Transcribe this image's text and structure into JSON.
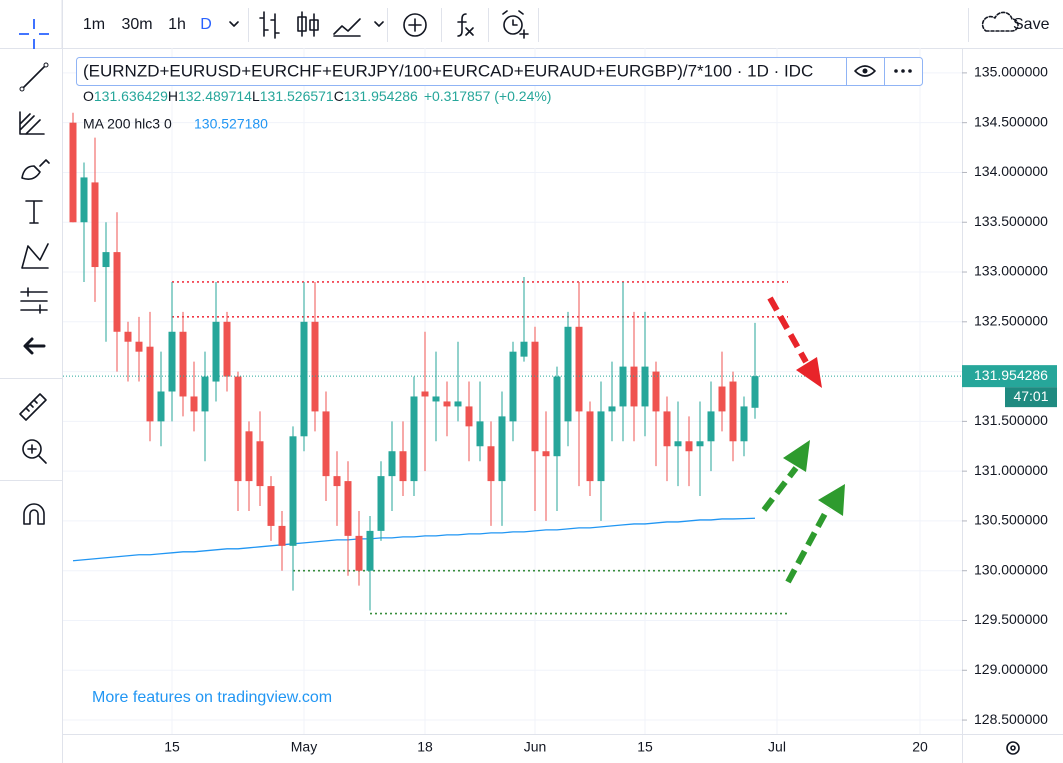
{
  "toolbar": {
    "intervals": [
      "1m",
      "30m",
      "1h",
      "D"
    ],
    "save": "Save"
  },
  "legend": {
    "title": "(EURNZD+EURUSD+EURCHF+EURJPY/100+EURCAD+EURAUD+EURGBP)/7*100 · 1D · IDC",
    "ohlc": [
      [
        "O",
        "131.636429"
      ],
      [
        "H",
        "132.489714"
      ],
      [
        "L",
        "131.526571"
      ],
      [
        "C",
        "131.954286"
      ]
    ],
    "change": "+0.317857 (+0.24%)",
    "ma_name": "MA 200 hlc3 0",
    "ma_value": "130.527180"
  },
  "watermark": "More features on tradingview.com",
  "chart_data": {
    "type": "candlestick",
    "categories": [
      null,
      null,
      null,
      null,
      null,
      null,
      null,
      null,
      null,
      "15",
      null,
      null,
      null,
      null,
      null,
      null,
      null,
      null,
      null,
      null,
      null,
      "May",
      null,
      null,
      null,
      null,
      null,
      null,
      null,
      null,
      null,
      null,
      "18",
      null,
      null,
      null,
      null,
      null,
      null,
      null,
      null,
      null,
      "Jun",
      null,
      null,
      null,
      null,
      null,
      null,
      null,
      null,
      null,
      "15",
      null,
      null,
      null,
      null,
      null,
      null,
      null,
      null,
      null,
      null,
      null,
      "Jul",
      null,
      null,
      null,
      null,
      null,
      null,
      null,
      null,
      null,
      null,
      null,
      null,
      "20",
      null,
      null,
      null
    ],
    "open": [
      134.5,
      133.5,
      133.9,
      133.05,
      133.2,
      132.4,
      132.3,
      132.25,
      131.5,
      131.8,
      132.4,
      131.75,
      131.6,
      131.9,
      132.5,
      131.95,
      131.4,
      131.3,
      130.85,
      130.45,
      130.25,
      131.35,
      132.5,
      131.6,
      130.95,
      130.9,
      130.35,
      130.0,
      130.4,
      130.95,
      131.2,
      130.9,
      131.8,
      131.7,
      131.7,
      131.65,
      131.65,
      131.25,
      131.25,
      130.9,
      131.5,
      132.15,
      132.3,
      131.2,
      131.15,
      131.5,
      132.45,
      131.6,
      130.9,
      131.6,
      131.65,
      132.05,
      131.65,
      132.0,
      131.6,
      131.25,
      131.3,
      131.25,
      131.3,
      131.85,
      131.9,
      131.3,
      131.636429,
      null,
      null,
      null,
      null,
      null,
      null,
      null,
      null,
      null,
      null,
      null,
      null,
      null,
      null,
      null,
      null,
      null,
      null
    ],
    "high": [
      134.6,
      134.1,
      134.35,
      133.5,
      133.6,
      132.5,
      132.55,
      132.6,
      132.2,
      132.9,
      132.6,
      132.1,
      132.2,
      132.9,
      132.6,
      132.0,
      131.5,
      131.6,
      130.95,
      130.6,
      131.45,
      132.9,
      132.9,
      131.8,
      131.2,
      131.1,
      130.6,
      130.55,
      131.1,
      131.5,
      131.5,
      131.95,
      132.4,
      132.2,
      131.9,
      132.3,
      131.9,
      131.9,
      131.5,
      131.8,
      132.3,
      132.95,
      132.45,
      131.6,
      132.05,
      132.6,
      132.9,
      131.7,
      131.9,
      132.1,
      132.9,
      132.6,
      132.6,
      132.1,
      131.75,
      131.7,
      131.55,
      131.7,
      131.9,
      132.2,
      132.0,
      131.75,
      132.489714,
      null,
      null,
      null,
      null,
      null,
      null,
      null,
      null,
      null,
      null,
      null,
      null,
      null,
      null,
      null,
      null,
      null,
      null
    ],
    "low": [
      133.5,
      132.9,
      132.7,
      132.3,
      132.0,
      131.9,
      131.9,
      131.3,
      131.25,
      131.5,
      131.55,
      131.4,
      131.1,
      131.7,
      131.8,
      130.6,
      130.6,
      130.65,
      130.3,
      130.0,
      129.8,
      131.2,
      131.4,
      130.7,
      130.45,
      129.95,
      129.85,
      129.6,
      130.3,
      130.6,
      130.75,
      130.75,
      131.0,
      131.3,
      131.35,
      131.5,
      131.1,
      131.1,
      130.45,
      130.45,
      131.3,
      132.1,
      130.6,
      130.5,
      130.6,
      131.25,
      130.85,
      130.75,
      130.5,
      131.3,
      131.3,
      131.3,
      131.35,
      131.05,
      130.9,
      130.85,
      130.85,
      130.75,
      131.0,
      131.4,
      131.1,
      131.15,
      131.526571,
      null,
      null,
      null,
      null,
      null,
      null,
      null,
      null,
      null,
      null,
      null,
      null,
      null,
      null,
      null,
      null,
      null,
      null
    ],
    "close": [
      133.5,
      133.95,
      133.05,
      133.2,
      132.4,
      132.3,
      132.2,
      131.5,
      131.8,
      132.4,
      131.75,
      131.6,
      131.95,
      132.5,
      131.95,
      130.9,
      130.9,
      130.85,
      130.45,
      130.25,
      131.35,
      132.5,
      131.6,
      130.95,
      130.85,
      130.35,
      130.0,
      130.4,
      130.95,
      131.2,
      130.9,
      131.75,
      131.75,
      131.75,
      131.65,
      131.7,
      131.45,
      131.5,
      130.9,
      131.55,
      132.2,
      132.3,
      131.2,
      131.15,
      131.95,
      132.45,
      131.6,
      130.9,
      131.6,
      131.65,
      132.05,
      131.65,
      132.05,
      131.6,
      131.25,
      131.3,
      131.2,
      131.3,
      131.6,
      131.6,
      131.3,
      131.65,
      131.954286,
      null,
      null,
      null,
      null,
      null,
      null,
      null,
      null,
      null,
      null,
      null,
      null,
      null,
      null,
      null,
      null,
      null,
      null
    ],
    "up_color": "#26a69a",
    "down_color": "#ef5350",
    "ma": {
      "color": "#2196f3",
      "values": [
        130.1,
        130.11,
        130.12,
        130.13,
        130.14,
        130.15,
        130.16,
        130.16,
        130.17,
        130.18,
        130.19,
        130.19,
        130.2,
        130.21,
        130.22,
        130.22,
        130.23,
        130.24,
        130.25,
        130.26,
        130.27,
        130.28,
        130.29,
        130.3,
        130.31,
        130.31,
        130.32,
        130.32,
        130.33,
        130.33,
        130.34,
        130.34,
        130.35,
        130.35,
        130.36,
        130.36,
        130.37,
        130.37,
        130.38,
        130.38,
        130.39,
        130.39,
        130.4,
        130.41,
        130.41,
        130.42,
        130.43,
        130.43,
        130.44,
        130.45,
        130.46,
        130.47,
        130.47,
        130.48,
        130.49,
        130.49,
        130.5,
        130.51,
        130.51,
        130.52,
        130.52,
        130.523,
        130.52718,
        null,
        null,
        null,
        null,
        null,
        null,
        null,
        null,
        null,
        null,
        null,
        null,
        null,
        null,
        null,
        null,
        null,
        null
      ]
    },
    "levels": [
      {
        "value": 132.9,
        "color": "#f23645"
      },
      {
        "value": 132.55,
        "color": "#f23645"
      },
      {
        "value": 130.0,
        "color": "#388e3c"
      },
      {
        "value": 129.57,
        "color": "#388e3c"
      }
    ],
    "ylim": [
      128.36,
      135.25
    ],
    "yticks": [
      {
        "value": 128.5,
        "label": "128.500000"
      },
      {
        "value": 129,
        "label": "129.000000"
      },
      {
        "value": 129.5,
        "label": "129.500000"
      },
      {
        "value": 130,
        "label": "130.000000"
      },
      {
        "value": 130.5,
        "label": "130.500000"
      },
      {
        "value": 131,
        "label": "131.000000"
      },
      {
        "value": 131.5,
        "label": "131.500000"
      },
      {
        "value": 132,
        "label": "132.000000"
      },
      {
        "value": 132.5,
        "label": "132.500000"
      },
      {
        "value": 133,
        "label": "133.000000"
      },
      {
        "value": 133.5,
        "label": "133.500000"
      },
      {
        "value": 134,
        "label": "134.000000"
      },
      {
        "value": 134.5,
        "label": "134.500000"
      },
      {
        "value": 135,
        "label": "135.000000"
      }
    ],
    "last_price": {
      "value": 131.954286,
      "label": "131.954286"
    },
    "countdown": "47:01",
    "grid": true
  }
}
